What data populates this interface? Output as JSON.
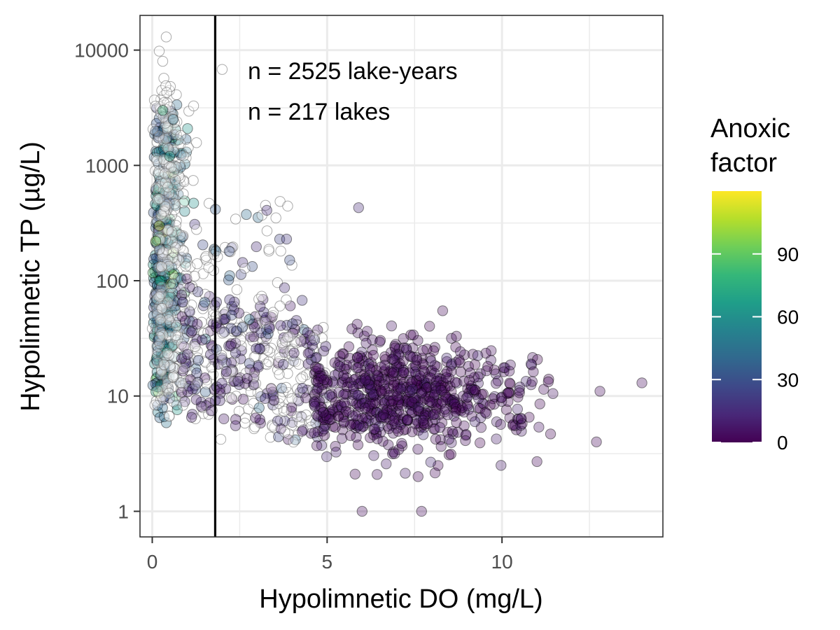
{
  "chart_data": {
    "type": "scatter",
    "xlabel": "Hypolimnetic DO (mg/L)",
    "ylabel": "Hypolimnetic TP (µg/L)",
    "x_ticks": [
      0,
      5,
      10
    ],
    "y_ticks": [
      1,
      10,
      100,
      1000,
      10000
    ],
    "y_scale": "log10",
    "xlim": [
      -0.35,
      14.6
    ],
    "ylim": [
      0.6,
      20000
    ],
    "grid": true,
    "vertical_reference_line_x": 1.8,
    "annotations": [
      "n = 2525 lake-years",
      "n = 217 lakes"
    ],
    "color_variable": "Anoxic factor",
    "legend": {
      "title": "Anoxic factor",
      "ticks": [
        0,
        30,
        60,
        90
      ],
      "range": [
        0,
        120
      ],
      "placement": "right",
      "colors": [
        "#440154",
        "#482878",
        "#3e4989",
        "#31688e",
        "#26828e",
        "#1f9e89",
        "#35b779",
        "#6ece58",
        "#b5de2b",
        "#fde725"
      ]
    },
    "na_color": "#ffffff",
    "points_sample": [
      {
        "x": 0.4,
        "y": 13000,
        "af": null
      },
      {
        "x": 0.2,
        "y": 9800,
        "af": null
      },
      {
        "x": 0.3,
        "y": 8000,
        "af": null
      },
      {
        "x": 2.0,
        "y": 6800,
        "af": null
      },
      {
        "x": 0.3,
        "y": 3000,
        "af": 80
      },
      {
        "x": 0.6,
        "y": 2500,
        "af": 45
      },
      {
        "x": 0.5,
        "y": 1200,
        "af": 70
      },
      {
        "x": 0.2,
        "y": 300,
        "af": 110
      },
      {
        "x": 0.1,
        "y": 220,
        "af": 100
      },
      {
        "x": 5.9,
        "y": 430,
        "af": 15
      },
      {
        "x": 1.5,
        "y": 65,
        "af": 40
      },
      {
        "x": 2.2,
        "y": 180,
        "af": 30
      },
      {
        "x": 7.0,
        "y": 10,
        "af": 5
      },
      {
        "x": 6.0,
        "y": 1,
        "af": 3
      },
      {
        "x": 7.7,
        "y": 1,
        "af": 3
      },
      {
        "x": 14.0,
        "y": 13,
        "af": 3
      },
      {
        "x": 12.7,
        "y": 4,
        "af": 2
      },
      {
        "x": 12.8,
        "y": 11,
        "af": 3
      },
      {
        "x": 11.0,
        "y": 2.7,
        "af": 2
      },
      {
        "x": 7.6,
        "y": 2,
        "af": 2
      }
    ]
  }
}
